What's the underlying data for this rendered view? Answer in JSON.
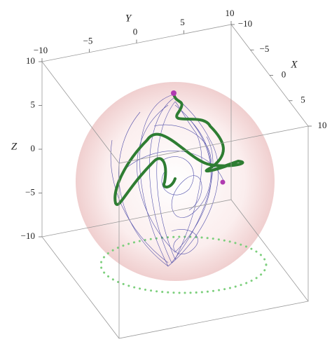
{
  "chart_data": {
    "type": "line3d",
    "xlabel": "X",
    "ylabel": "Y",
    "zlabel": "Z",
    "xlim": [
      -10,
      10
    ],
    "ylim": [
      -10,
      10
    ],
    "zlim": [
      -10,
      10
    ],
    "xticks": [
      {
        "value": -10,
        "label": "−10"
      },
      {
        "value": -5,
        "label": "−5"
      },
      0,
      5,
      10
    ],
    "yticks": [
      {
        "value": -10,
        "label": "−10"
      },
      {
        "value": -5,
        "label": "−5"
      },
      0,
      5,
      10
    ],
    "zticks": [
      {
        "value": -10,
        "label": "−10"
      },
      {
        "value": -5,
        "label": "−5"
      },
      0,
      5,
      10
    ]
  }
}
